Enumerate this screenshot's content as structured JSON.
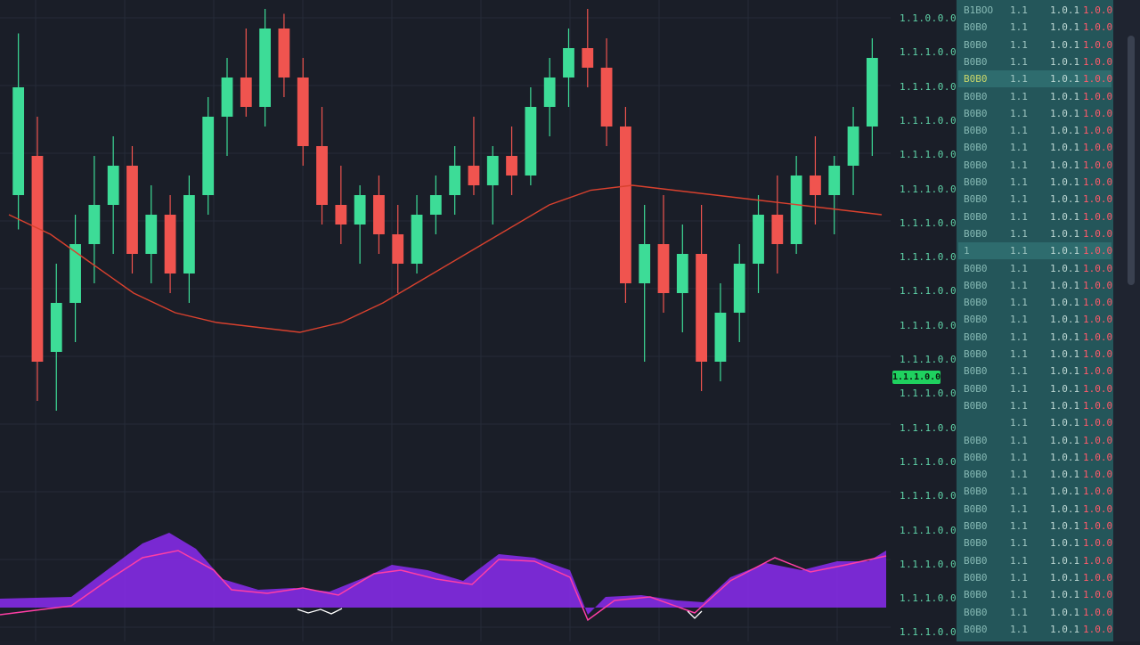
{
  "theme": {
    "background": "#1a1e28",
    "up_color": "#3ddc97",
    "down_color": "#f0544f",
    "ma_color": "#d9412e",
    "oscillator_fill": "#8b2cf0",
    "oscillator_line": "#ff3ea5",
    "last_price_tag_color": "#1fd15f",
    "orderbook_bg": "#24565a",
    "sell_text_color": "#ff5a6a"
  },
  "price_axis": {
    "labels": [
      "1.1.0.0.0",
      "1.1.1.0.0",
      "1.1.1.0.0",
      "1.1.1.0.0",
      "1.1.1.0.0",
      "1.1.1.0.0",
      "1.1.1.0.0",
      "1.1.1.0.0",
      "1.1.1.0.0",
      "1.1.1.0.0",
      "1.1.1.0.0",
      "1.1.1.0.0",
      "1.1.1.0.0",
      "1.1.1.0.0",
      "1.1.1.0.0",
      "1.1.1.0.0",
      "1.1.1.0.0",
      "1.1.1.0.0",
      "1.1.1.0.0"
    ],
    "last_price": "1.1.1.0.0"
  },
  "orderbook": {
    "rows": [
      {
        "c1": "B1BOO",
        "c2": "1.1",
        "c3": "1.0.1",
        "c4": "1.0.0"
      },
      {
        "c1": "B0B0",
        "c2": "1.1",
        "c3": "1.0.1",
        "c4": "1.0.0"
      },
      {
        "c1": "B0B0",
        "c2": "1.1",
        "c3": "1.0.1",
        "c4": "1.0.0"
      },
      {
        "c1": "B0B0",
        "c2": "1.1",
        "c3": "1.0.1",
        "c4": "1.0.0"
      },
      {
        "c1": "B0B0",
        "c2": "1.1",
        "c3": "1.0.1",
        "c4": "1.0.0"
      },
      {
        "c1": "B0B0",
        "c2": "1.1",
        "c3": "1.0.1",
        "c4": "1.0.0"
      },
      {
        "c1": "B0B0",
        "c2": "1.1",
        "c3": "1.0.1",
        "c4": "1.0.0"
      },
      {
        "c1": "B0B0",
        "c2": "1.1",
        "c3": "1.0.1",
        "c4": "1.0.0"
      },
      {
        "c1": "B0B0",
        "c2": "1.1",
        "c3": "1.0.1",
        "c4": "1.0.0"
      },
      {
        "c1": "B0B0",
        "c2": "1.1",
        "c3": "1.0.1",
        "c4": "1.0.0"
      },
      {
        "c1": "B0B0",
        "c2": "1.1",
        "c3": "1.0.1",
        "c4": "1.0.0"
      },
      {
        "c1": "B0B0",
        "c2": "1.1",
        "c3": "1.0.1",
        "c4": "1.0.0"
      },
      {
        "c1": "B0B0",
        "c2": "1.1",
        "c3": "1.0.1",
        "c4": "1.0.0"
      },
      {
        "c1": "B0B0",
        "c2": "1.1",
        "c3": "1.0.1",
        "c4": "1.0.0"
      },
      {
        "c1": "1",
        "c2": "1.1",
        "c3": "1.0.1",
        "c4": "1.0.0"
      },
      {
        "c1": "B0B0",
        "c2": "1.1",
        "c3": "1.0.1",
        "c4": "1.0.0"
      },
      {
        "c1": "B0B0",
        "c2": "1.1",
        "c3": "1.0.1",
        "c4": "1.0.0"
      },
      {
        "c1": "B0B0",
        "c2": "1.1",
        "c3": "1.0.1",
        "c4": "1.0.0"
      },
      {
        "c1": "B0B0",
        "c2": "1.1",
        "c3": "1.0.1",
        "c4": "1.0.0"
      },
      {
        "c1": "B0B0",
        "c2": "1.1",
        "c3": "1.0.1",
        "c4": "1.0.0"
      },
      {
        "c1": "B0B0",
        "c2": "1.1",
        "c3": "1.0.1",
        "c4": "1.0.0"
      },
      {
        "c1": "B0B0",
        "c2": "1.1",
        "c3": "1.0.1",
        "c4": "1.0.0"
      },
      {
        "c1": "B0B0",
        "c2": "1.1",
        "c3": "1.0.1",
        "c4": "1.0.0"
      },
      {
        "c1": "B0B0",
        "c2": "1.1",
        "c3": "1.0.1",
        "c4": "1.0.0"
      },
      {
        "c1": "",
        "c2": "1.1",
        "c3": "1.0.1",
        "c4": "1.0.0"
      },
      {
        "c1": "B0B0",
        "c2": "1.1",
        "c3": "1.0.1",
        "c4": "1.0.0"
      },
      {
        "c1": "B0B0",
        "c2": "1.1",
        "c3": "1.0.1",
        "c4": "1.0.0"
      },
      {
        "c1": "B0B0",
        "c2": "1.1",
        "c3": "1.0.1",
        "c4": "1.0.0"
      },
      {
        "c1": "B0B0",
        "c2": "1.1",
        "c3": "1.0.1",
        "c4": "1.0.0"
      },
      {
        "c1": "B0B0",
        "c2": "1.1",
        "c3": "1.0.1",
        "c4": "1.0.0"
      },
      {
        "c1": "B0B0",
        "c2": "1.1",
        "c3": "1.0.1",
        "c4": "1.0.0"
      },
      {
        "c1": "B0B0",
        "c2": "1.1",
        "c3": "1.0.1",
        "c4": "1.0.0"
      },
      {
        "c1": "B0B0",
        "c2": "1.1",
        "c3": "1.0.1",
        "c4": "1.0.0"
      },
      {
        "c1": "B0B0",
        "c2": "1.1",
        "c3": "1.0.1",
        "c4": "1.0.0"
      },
      {
        "c1": "B0B0",
        "c2": "1.1",
        "c3": "1.0.1",
        "c4": "1.0.0"
      },
      {
        "c1": "B0B0",
        "c2": "1.1",
        "c3": "1.0.1",
        "c4": "1.0.0"
      },
      {
        "c1": "B0B0",
        "c2": "1.1",
        "c3": "1.0.1",
        "c4": "1.0.0"
      }
    ]
  },
  "chart_data": {
    "type": "candlestick",
    "price_range": [
      0,
      100
    ],
    "candles": [
      {
        "o": 62,
        "h": 95,
        "l": 55,
        "c": 84
      },
      {
        "o": 70,
        "h": 78,
        "l": 20,
        "c": 28
      },
      {
        "o": 30,
        "h": 48,
        "l": 18,
        "c": 40
      },
      {
        "o": 40,
        "h": 58,
        "l": 32,
        "c": 52
      },
      {
        "o": 52,
        "h": 70,
        "l": 44,
        "c": 60
      },
      {
        "o": 60,
        "h": 74,
        "l": 50,
        "c": 68
      },
      {
        "o": 68,
        "h": 72,
        "l": 46,
        "c": 50
      },
      {
        "o": 50,
        "h": 64,
        "l": 44,
        "c": 58
      },
      {
        "o": 58,
        "h": 62,
        "l": 42,
        "c": 46
      },
      {
        "o": 46,
        "h": 66,
        "l": 40,
        "c": 62
      },
      {
        "o": 62,
        "h": 82,
        "l": 58,
        "c": 78
      },
      {
        "o": 78,
        "h": 90,
        "l": 70,
        "c": 86
      },
      {
        "o": 86,
        "h": 96,
        "l": 78,
        "c": 80
      },
      {
        "o": 80,
        "h": 100,
        "l": 76,
        "c": 96
      },
      {
        "o": 96,
        "h": 99,
        "l": 82,
        "c": 86
      },
      {
        "o": 86,
        "h": 90,
        "l": 68,
        "c": 72
      },
      {
        "o": 72,
        "h": 80,
        "l": 56,
        "c": 60
      },
      {
        "o": 60,
        "h": 68,
        "l": 52,
        "c": 56
      },
      {
        "o": 56,
        "h": 64,
        "l": 48,
        "c": 62
      },
      {
        "o": 62,
        "h": 66,
        "l": 50,
        "c": 54
      },
      {
        "o": 54,
        "h": 60,
        "l": 42,
        "c": 48
      },
      {
        "o": 48,
        "h": 62,
        "l": 46,
        "c": 58
      },
      {
        "o": 58,
        "h": 66,
        "l": 54,
        "c": 62
      },
      {
        "o": 62,
        "h": 72,
        "l": 58,
        "c": 68
      },
      {
        "o": 68,
        "h": 78,
        "l": 62,
        "c": 64
      },
      {
        "o": 64,
        "h": 72,
        "l": 56,
        "c": 70
      },
      {
        "o": 70,
        "h": 76,
        "l": 62,
        "c": 66
      },
      {
        "o": 66,
        "h": 84,
        "l": 64,
        "c": 80
      },
      {
        "o": 80,
        "h": 90,
        "l": 74,
        "c": 86
      },
      {
        "o": 86,
        "h": 96,
        "l": 80,
        "c": 92
      },
      {
        "o": 92,
        "h": 100,
        "l": 84,
        "c": 88
      },
      {
        "o": 88,
        "h": 94,
        "l": 72,
        "c": 76
      },
      {
        "o": 76,
        "h": 80,
        "l": 40,
        "c": 44
      },
      {
        "o": 44,
        "h": 60,
        "l": 28,
        "c": 52
      },
      {
        "o": 52,
        "h": 62,
        "l": 38,
        "c": 42
      },
      {
        "o": 42,
        "h": 56,
        "l": 34,
        "c": 50
      },
      {
        "o": 50,
        "h": 60,
        "l": 22,
        "c": 28
      },
      {
        "o": 28,
        "h": 44,
        "l": 24,
        "c": 38
      },
      {
        "o": 38,
        "h": 52,
        "l": 32,
        "c": 48
      },
      {
        "o": 48,
        "h": 62,
        "l": 42,
        "c": 58
      },
      {
        "o": 58,
        "h": 66,
        "l": 46,
        "c": 52
      },
      {
        "o": 52,
        "h": 70,
        "l": 50,
        "c": 66
      },
      {
        "o": 66,
        "h": 74,
        "l": 56,
        "c": 62
      },
      {
        "o": 62,
        "h": 70,
        "l": 54,
        "c": 68
      },
      {
        "o": 68,
        "h": 80,
        "l": 62,
        "c": 76
      },
      {
        "o": 76,
        "h": 94,
        "l": 70,
        "c": 90
      }
    ],
    "moving_average": [
      58,
      54,
      48,
      42,
      38,
      36,
      35,
      34,
      36,
      40,
      45,
      50,
      55,
      60,
      63,
      64,
      63,
      62,
      61,
      60,
      59,
      58
    ]
  }
}
